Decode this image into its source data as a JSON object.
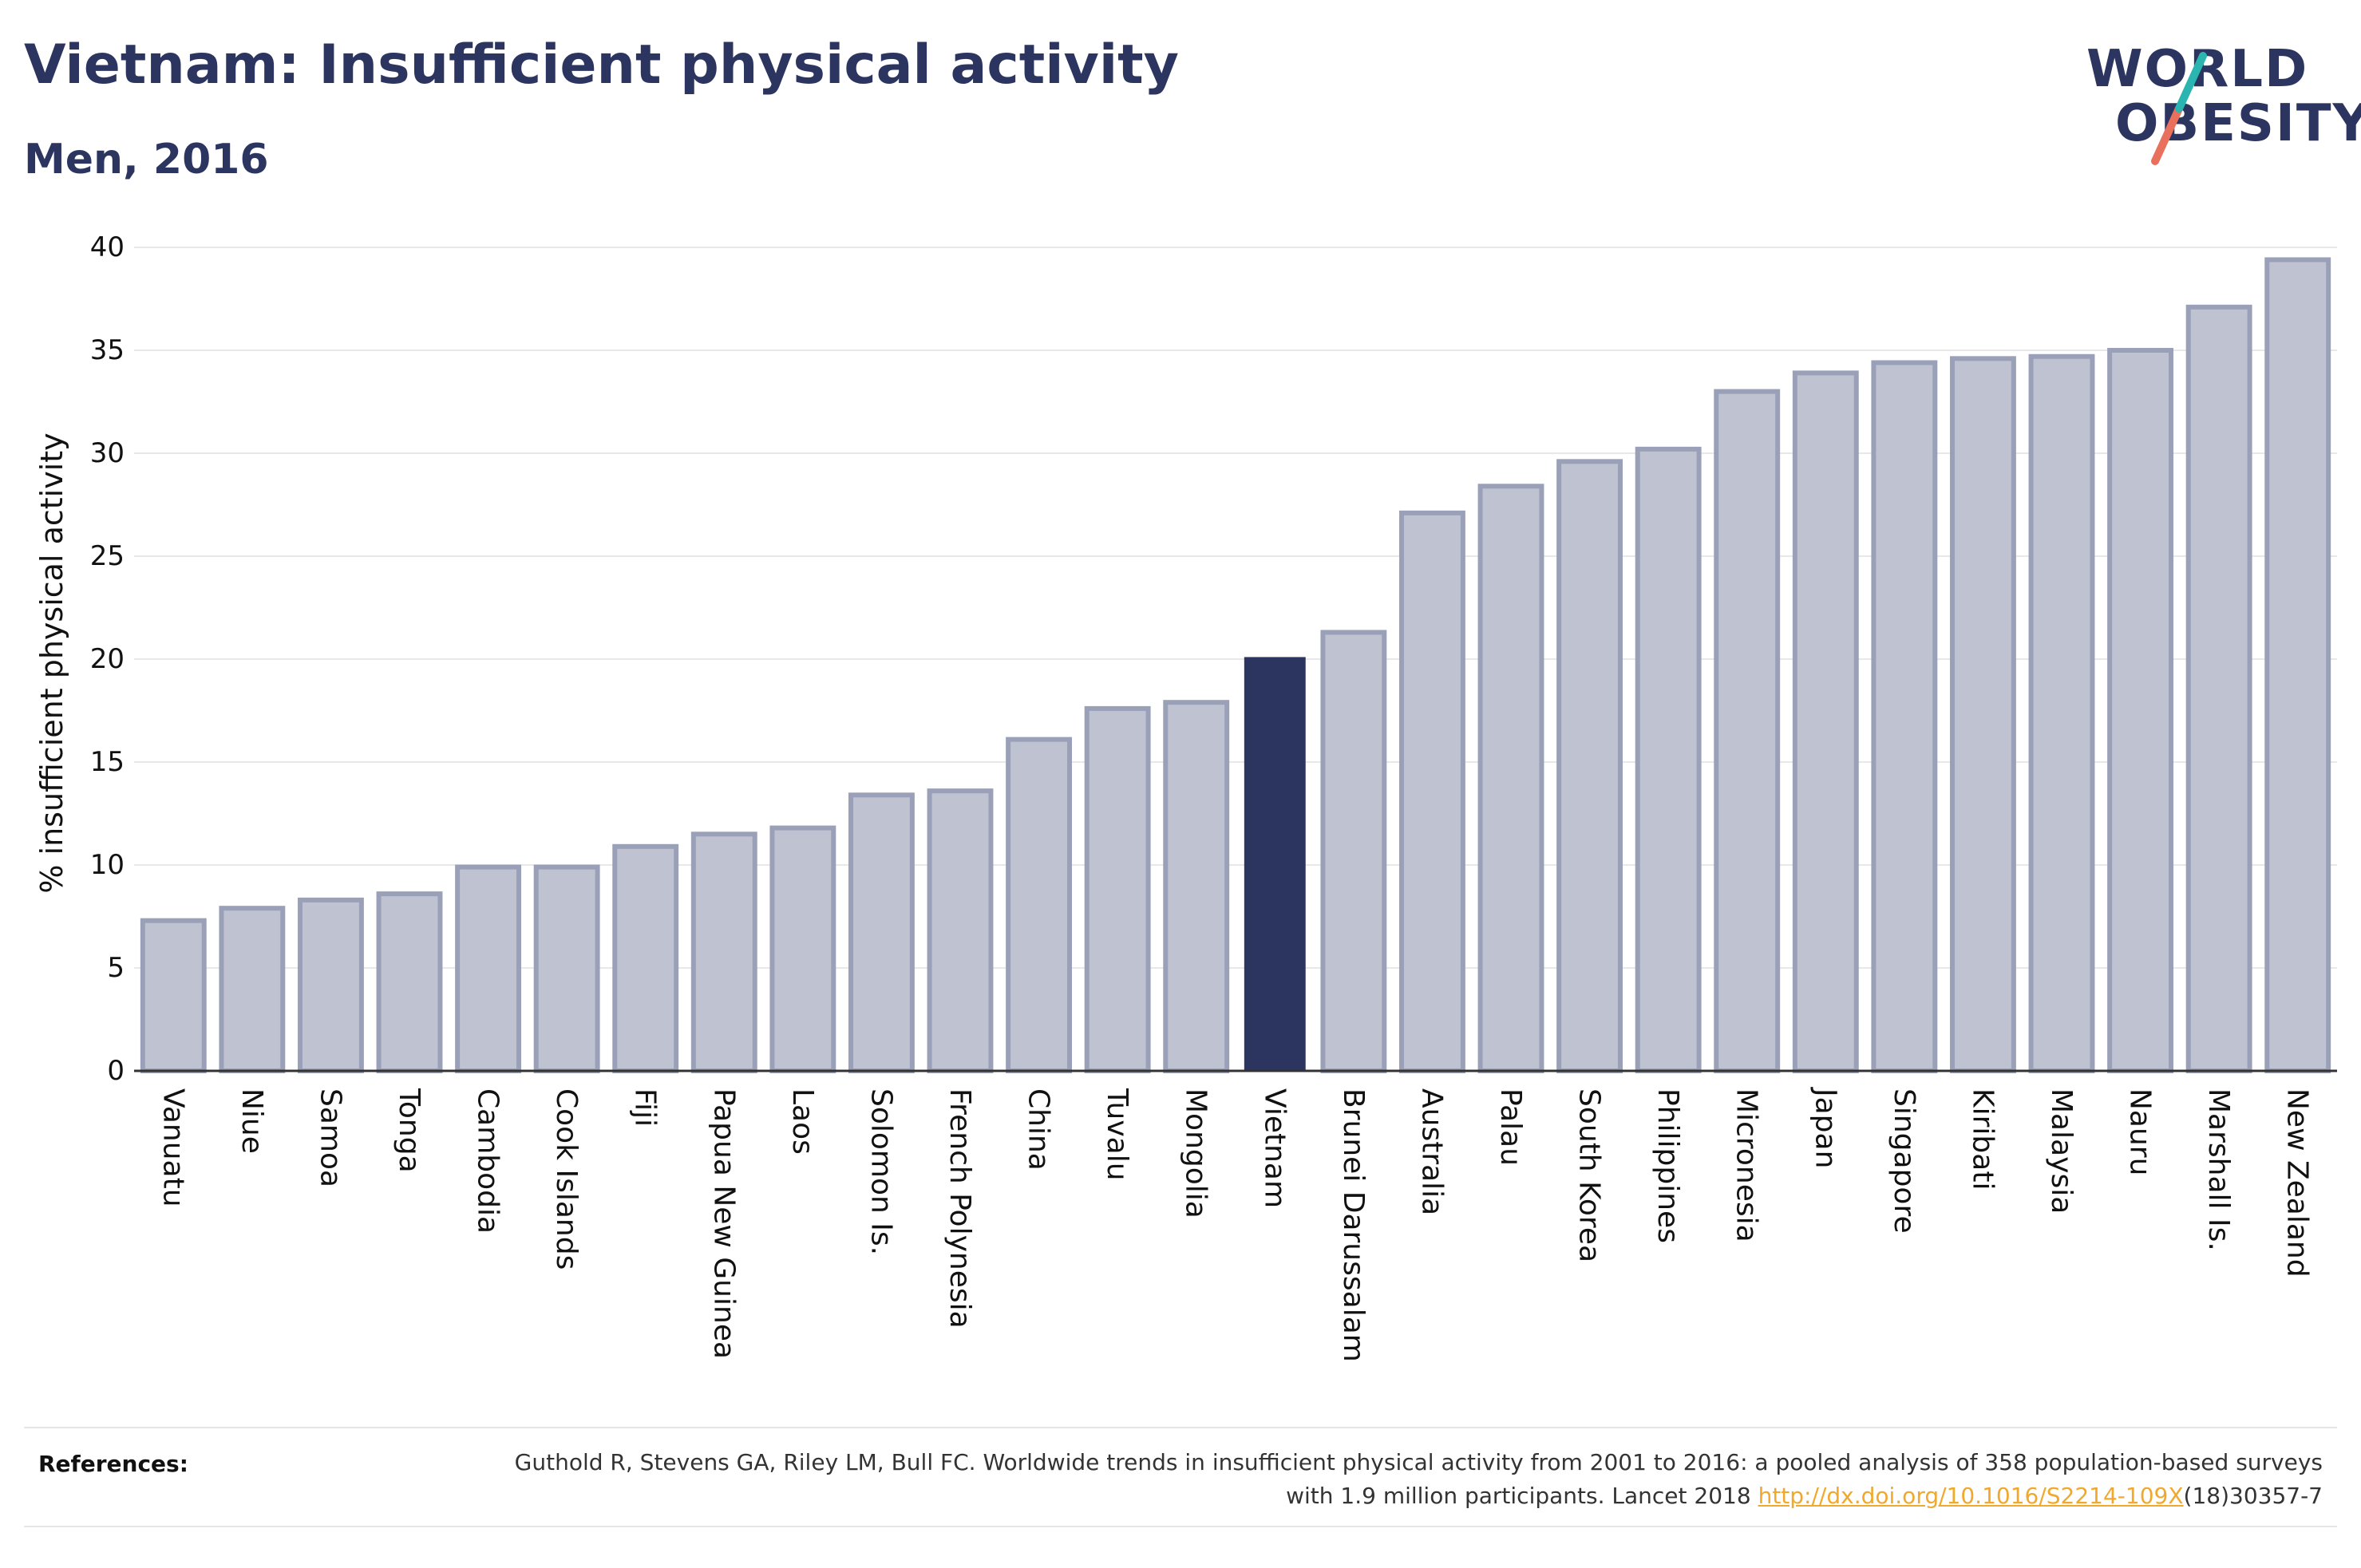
{
  "title": "Vietnam: Insufficient physical activity",
  "subtitle": "Men, 2016",
  "logo": {
    "line1": "WORLD",
    "line2": "OBESITY"
  },
  "colors": {
    "bar": "#bfc3d1",
    "bar_border": "#9aa0b7",
    "highlight": "#2b3560",
    "accent_teal": "#2bb5b0",
    "accent_coral": "#e8705d",
    "link": "#f0a92c"
  },
  "chart_data": {
    "type": "bar",
    "ylabel": "% insufficient physical activity",
    "ylim": [
      0,
      40
    ],
    "yticks": [
      0,
      5,
      10,
      15,
      20,
      25,
      30,
      35,
      40
    ],
    "grid": true,
    "highlight": "Vietnam",
    "categories": [
      "Vanuatu",
      "Niue",
      "Samoa",
      "Tonga",
      "Cambodia",
      "Cook Islands",
      "Fiji",
      "Papua New Guinea",
      "Laos",
      "Solomon Is.",
      "French Polynesia",
      "China",
      "Tuvalu",
      "Mongolia",
      "Vietnam",
      "Brunei Darussalam",
      "Australia",
      "Palau",
      "South Korea",
      "Philippines",
      "Micronesia",
      "Japan",
      "Singapore",
      "Kiribati",
      "Malaysia",
      "Nauru",
      "Marshall Is.",
      "New Zealand"
    ],
    "values": [
      7.3,
      7.9,
      8.3,
      8.6,
      9.9,
      9.9,
      10.9,
      11.5,
      11.8,
      13.4,
      13.6,
      16.1,
      17.6,
      17.9,
      20.1,
      21.3,
      27.1,
      28.4,
      29.6,
      30.2,
      33.0,
      33.9,
      34.4,
      34.6,
      34.7,
      35.0,
      37.1,
      39.4
    ]
  },
  "references": {
    "label": "References:",
    "text": "Guthold R, Stevens GA, Riley LM, Bull FC. Worldwide trends in insufficient physical activity from 2001 to 2016: a pooled analysis of 358 population-based surveys with 1.9 million participants. Lancet 2018 ",
    "link": "http://dx.doi.org/10.1016/S2214-109X",
    "suffix": "(18)30357-7"
  }
}
